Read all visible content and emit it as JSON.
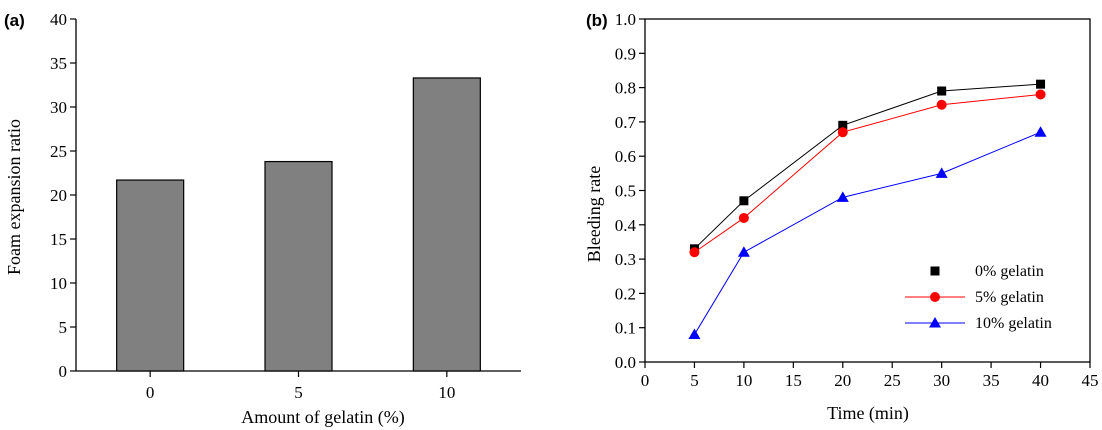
{
  "chart_data": [
    {
      "type": "bar",
      "panel_label": "(a)",
      "categories": [
        "0",
        "5",
        "10"
      ],
      "values": [
        21.7,
        23.8,
        33.3
      ],
      "xlabel": "Amount of gelatin (%)",
      "ylabel": "Foam expansion ratio",
      "ylim": [
        0,
        40
      ],
      "yticks": [
        "0",
        "5",
        "10",
        "15",
        "20",
        "25",
        "30",
        "35",
        "40"
      ],
      "bar_color": "#808080",
      "grid": false
    },
    {
      "type": "line",
      "panel_label": "(b)",
      "xlabel": "Time (min)",
      "ylabel": "Bleeding rate",
      "xlim": [
        0,
        45
      ],
      "ylim": [
        0.0,
        1.0
      ],
      "xticks": [
        "0",
        "5",
        "10",
        "15",
        "20",
        "25",
        "30",
        "35",
        "40",
        "45"
      ],
      "yticks": [
        "0.0",
        "0.1",
        "0.2",
        "0.3",
        "0.4",
        "0.5",
        "0.6",
        "0.7",
        "0.8",
        "0.9",
        "1.0"
      ],
      "legend_position": "lower-right",
      "grid": false,
      "series": [
        {
          "name": "0% gelatin",
          "x": [
            5,
            10,
            20,
            30,
            40
          ],
          "y": [
            0.33,
            0.47,
            0.69,
            0.79,
            0.81
          ],
          "color": "#000000",
          "marker": "square"
        },
        {
          "name": "5% gelatin",
          "x": [
            5,
            10,
            20,
            30,
            40
          ],
          "y": [
            0.32,
            0.42,
            0.67,
            0.75,
            0.78
          ],
          "color": "#ff0000",
          "marker": "circle"
        },
        {
          "name": "10% gelatin",
          "x": [
            5,
            10,
            20,
            30,
            40
          ],
          "y": [
            0.08,
            0.32,
            0.48,
            0.55,
            0.67
          ],
          "color": "#0000ff",
          "marker": "triangle"
        }
      ]
    }
  ]
}
